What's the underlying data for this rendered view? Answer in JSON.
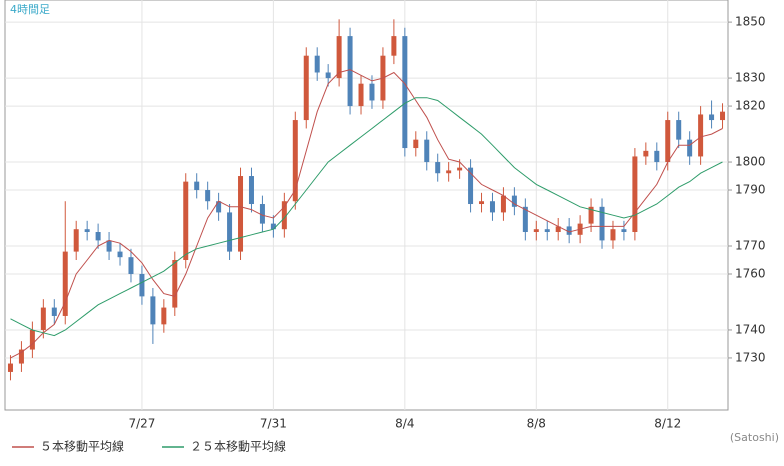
{
  "chart_data": {
    "type": "candlestick",
    "title": "4時間足",
    "source": "(Satoshi)",
    "categories": [
      null,
      null,
      null,
      null,
      null,
      null,
      null,
      null,
      null,
      null,
      null,
      null,
      "7/27",
      null,
      null,
      null,
      null,
      null,
      null,
      null,
      null,
      null,
      null,
      null,
      "7/31",
      null,
      null,
      null,
      null,
      null,
      null,
      null,
      null,
      null,
      null,
      null,
      "8/4",
      null,
      null,
      null,
      null,
      null,
      null,
      null,
      null,
      null,
      null,
      null,
      "8/8",
      null,
      null,
      null,
      null,
      null,
      null,
      null,
      null,
      null,
      null,
      null,
      "8/12",
      null,
      null,
      null,
      null,
      null
    ],
    "open": [
      1725,
      1728,
      1733,
      1740,
      1748,
      1745,
      1768,
      1776,
      1775,
      1772,
      1768,
      1766,
      1760,
      1752,
      1742,
      1748,
      1765,
      1793,
      1790,
      1786,
      1782,
      1768,
      1795,
      1785,
      1778,
      1776,
      1786,
      1815,
      1838,
      1832,
      1830,
      1845,
      1820,
      1828,
      1822,
      1838,
      1845,
      1805,
      1808,
      1800,
      1796,
      1797,
      1798,
      1785,
      1786,
      1782,
      1788,
      1784,
      1775,
      1776,
      1775,
      1777,
      1774,
      1778,
      1784,
      1772,
      1776,
      1775,
      1802,
      1804,
      1800,
      1815,
      1808,
      1802,
      1817,
      1815
    ],
    "high": [
      1731,
      1736,
      1743,
      1751,
      1751,
      1786,
      1779,
      1779,
      1778,
      1775,
      1771,
      1769,
      1763,
      1755,
      1751,
      1768,
      1796,
      1796,
      1793,
      1789,
      1785,
      1798,
      1798,
      1788,
      1781,
      1789,
      1818,
      1841,
      1841,
      1835,
      1851,
      1848,
      1831,
      1831,
      1841,
      1851,
      1848,
      1811,
      1811,
      1803,
      1800,
      1801,
      1801,
      1789,
      1789,
      1791,
      1791,
      1787,
      1779,
      1779,
      1780,
      1780,
      1781,
      1787,
      1787,
      1779,
      1779,
      1805,
      1807,
      1807,
      1818,
      1818,
      1811,
      1820,
      1822,
      1821
    ],
    "low": [
      1722,
      1725,
      1730,
      1737,
      1742,
      1742,
      1765,
      1772,
      1769,
      1765,
      1763,
      1757,
      1749,
      1735,
      1739,
      1745,
      1762,
      1787,
      1783,
      1779,
      1765,
      1765,
      1782,
      1775,
      1773,
      1773,
      1783,
      1812,
      1829,
      1827,
      1827,
      1817,
      1817,
      1819,
      1819,
      1835,
      1802,
      1802,
      1797,
      1793,
      1793,
      1794,
      1782,
      1782,
      1779,
      1779,
      1781,
      1772,
      1772,
      1772,
      1772,
      1771,
      1771,
      1775,
      1769,
      1769,
      1772,
      1772,
      1799,
      1797,
      1797,
      1805,
      1799,
      1799,
      1812,
      1812
    ],
    "close": [
      1728,
      1733,
      1740,
      1748,
      1745,
      1768,
      1776,
      1775,
      1772,
      1768,
      1766,
      1760,
      1752,
      1742,
      1748,
      1765,
      1793,
      1790,
      1786,
      1782,
      1768,
      1795,
      1785,
      1778,
      1776,
      1786,
      1815,
      1838,
      1832,
      1830,
      1845,
      1820,
      1828,
      1822,
      1838,
      1845,
      1805,
      1808,
      1800,
      1796,
      1797,
      1798,
      1785,
      1786,
      1782,
      1788,
      1784,
      1775,
      1776,
      1775,
      1777,
      1774,
      1778,
      1784,
      1772,
      1776,
      1775,
      1802,
      1804,
      1800,
      1815,
      1808,
      1802,
      1817,
      1815,
      1818
    ],
    "up_color": "#d0583c",
    "down_color": "#4f83b8",
    "series": [
      {
        "name": "５本移動平均線",
        "color": "#c0504d",
        "values": [
          1730,
          1732,
          1735,
          1739,
          1742,
          1750,
          1760,
          1765,
          1770,
          1772,
          1771,
          1768,
          1764,
          1758,
          1753,
          1752,
          1760,
          1770,
          1780,
          1786,
          1784,
          1784,
          1783,
          1781,
          1780,
          1784,
          1790,
          1804,
          1818,
          1828,
          1832,
          1833,
          1831,
          1829,
          1830,
          1832,
          1828,
          1822,
          1816,
          1808,
          1801,
          1800,
          1796,
          1792,
          1790,
          1788,
          1785,
          1783,
          1781,
          1779,
          1777,
          1775,
          1776,
          1777,
          1777,
          1777,
          1777,
          1782,
          1787,
          1792,
          1800,
          1806,
          1806,
          1809,
          1810,
          1812
        ]
      },
      {
        "name": "２５本移動平均線",
        "color": "#2e9c6a",
        "values": [
          1744,
          1742,
          1740,
          1739,
          1738,
          1740,
          1743,
          1746,
          1749,
          1751,
          1753,
          1755,
          1757,
          1759,
          1761,
          1764,
          1767,
          1769,
          1770,
          1771,
          1772,
          1773,
          1774,
          1775,
          1776,
          1780,
          1785,
          1790,
          1795,
          1800,
          1803,
          1806,
          1809,
          1812,
          1815,
          1818,
          1821,
          1823,
          1823,
          1822,
          1819,
          1816,
          1813,
          1810,
          1806,
          1802,
          1798,
          1795,
          1792,
          1790,
          1788,
          1786,
          1784,
          1783,
          1782,
          1781,
          1780,
          1781,
          1783,
          1785,
          1788,
          1791,
          1793,
          1796,
          1798,
          1800
        ]
      }
    ],
    "ylim": [
      1711.4,
      1857.9
    ],
    "yticks": [
      1730,
      1740,
      1760,
      1770,
      1790,
      1800,
      1820,
      1830,
      1850
    ],
    "grid": true
  }
}
